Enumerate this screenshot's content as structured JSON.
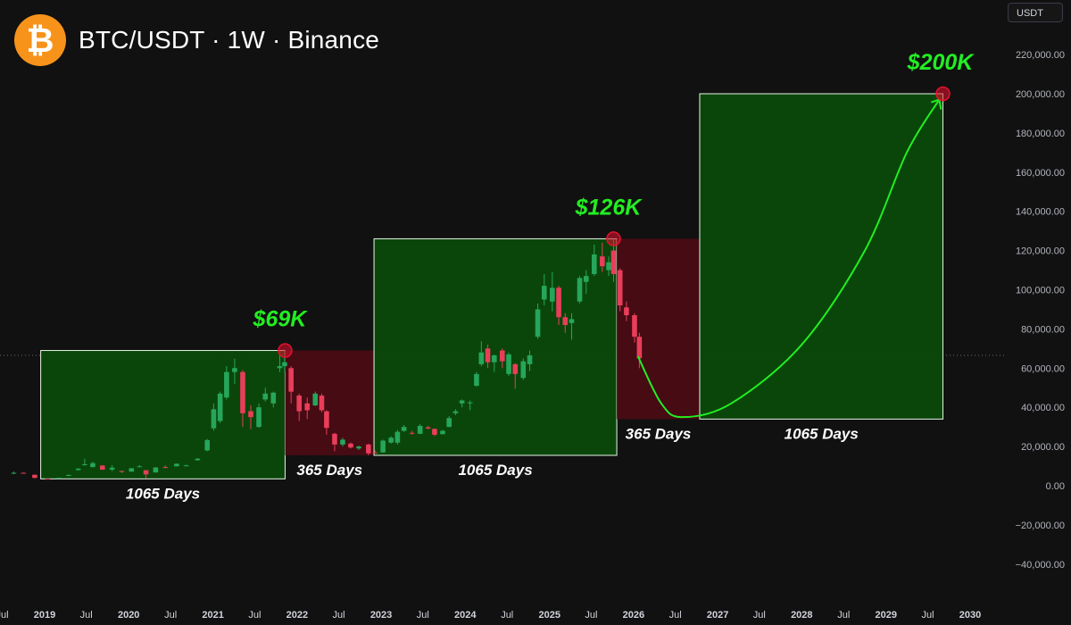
{
  "header": {
    "symbol": "BTC/USDT · 1W · Binance",
    "logo_glyph": "₿",
    "logo_icon": "bitcoin-icon",
    "logo_color": "#f7931a"
  },
  "currency_badge": "USDT",
  "colors": {
    "background": "#111111",
    "up": "#26a65b",
    "down": "#e83e5a",
    "bull_zone": "#0b4a0b",
    "bear_zone": "#4a0c14",
    "accent": "#22ee22",
    "peak_marker": "#e8112d"
  },
  "chart_data": {
    "type": "candlestick",
    "title": "BTC/USDT · 1W · Binance",
    "y_axis": {
      "unit": "USDT",
      "ticks": [
        -40000,
        -20000,
        0,
        20000,
        40000,
        60000,
        80000,
        100000,
        120000,
        140000,
        160000,
        180000,
        200000,
        220000
      ],
      "tick_labels": [
        "−40,000.00",
        "−20,000.00",
        "0.00",
        "20,000.00",
        "40,000.00",
        "60,000.00",
        "80,000.00",
        "100,000.00",
        "120,000.00",
        "140,000.00",
        "160,000.00",
        "180,000.00",
        "200,000.00",
        "220,000.00"
      ],
      "range": [
        -50000,
        240000
      ]
    },
    "x_axis": {
      "range": [
        "2018-06-01",
        "2030-09-01"
      ],
      "ticks": [
        {
          "date": "2018-07-01",
          "label": "Jul",
          "year": false
        },
        {
          "date": "2019-01-01",
          "label": "2019",
          "year": true
        },
        {
          "date": "2019-07-01",
          "label": "Jul",
          "year": false
        },
        {
          "date": "2020-01-01",
          "label": "2020",
          "year": true
        },
        {
          "date": "2020-07-01",
          "label": "Jul",
          "year": false
        },
        {
          "date": "2021-01-01",
          "label": "2021",
          "year": true
        },
        {
          "date": "2021-07-01",
          "label": "Jul",
          "year": false
        },
        {
          "date": "2022-01-01",
          "label": "2022",
          "year": true
        },
        {
          "date": "2022-07-01",
          "label": "Jul",
          "year": false
        },
        {
          "date": "2023-01-01",
          "label": "2023",
          "year": true
        },
        {
          "date": "2023-07-01",
          "label": "Jul",
          "year": false
        },
        {
          "date": "2024-01-01",
          "label": "2024",
          "year": true
        },
        {
          "date": "2024-07-01",
          "label": "Jul",
          "year": false
        },
        {
          "date": "2025-01-01",
          "label": "2025",
          "year": true
        },
        {
          "date": "2025-07-01",
          "label": "Jul",
          "year": false
        },
        {
          "date": "2026-01-01",
          "label": "2026",
          "year": true
        },
        {
          "date": "2026-07-01",
          "label": "Jul",
          "year": false
        },
        {
          "date": "2027-01-01",
          "label": "2027",
          "year": true
        },
        {
          "date": "2027-07-01",
          "label": "Jul",
          "year": false
        },
        {
          "date": "2028-01-01",
          "label": "2028",
          "year": true
        },
        {
          "date": "2028-07-01",
          "label": "Jul",
          "year": false
        },
        {
          "date": "2029-01-01",
          "label": "2029",
          "year": true
        },
        {
          "date": "2029-07-01",
          "label": "Jul",
          "year": false
        },
        {
          "date": "2030-01-01",
          "label": "2030",
          "year": true
        }
      ]
    },
    "reference_line": 66500,
    "zones": [
      {
        "kind": "bull",
        "start": "2018-12-15",
        "end": "2021-11-10",
        "low": 3500,
        "high": 69000,
        "label": "1065 Days"
      },
      {
        "kind": "bear",
        "start": "2021-11-10",
        "end": "2022-12-01",
        "low": 15500,
        "high": 69000,
        "label": "365 Days"
      },
      {
        "kind": "bull",
        "start": "2022-12-01",
        "end": "2025-10-20",
        "low": 15500,
        "high": 126000,
        "label": "1065 Days"
      },
      {
        "kind": "bear",
        "start": "2025-10-20",
        "end": "2026-10-15",
        "low": 34000,
        "high": 126000,
        "label": "365 Days"
      },
      {
        "kind": "bull",
        "start": "2026-10-15",
        "end": "2029-09-05",
        "low": 34000,
        "high": 200000,
        "label": "1065 Days"
      }
    ],
    "peaks": [
      {
        "date": "2021-11-10",
        "value": 69000,
        "label": "$69K"
      },
      {
        "date": "2025-10-06",
        "value": 126000,
        "label": "$126K"
      },
      {
        "date": "2029-09-05",
        "value": 200000,
        "label": "$200K"
      }
    ],
    "projection": [
      {
        "date": "2026-01-20",
        "value": 66000
      },
      {
        "date": "2026-05-01",
        "value": 42000
      },
      {
        "date": "2026-08-01",
        "value": 35000
      },
      {
        "date": "2027-03-01",
        "value": 42000
      },
      {
        "date": "2028-01-01",
        "value": 72000
      },
      {
        "date": "2028-10-01",
        "value": 120000
      },
      {
        "date": "2029-04-01",
        "value": 170000
      },
      {
        "date": "2029-08-20",
        "value": 197000
      }
    ],
    "candles": [
      {
        "date": "2018-06-10",
        "open": 7400,
        "high": 7800,
        "low": 6200,
        "close": 6500
      },
      {
        "date": "2018-08-20",
        "open": 6500,
        "high": 7200,
        "low": 5900,
        "close": 6600
      },
      {
        "date": "2018-10-01",
        "open": 6600,
        "high": 6700,
        "low": 6200,
        "close": 6300
      },
      {
        "date": "2018-11-19",
        "open": 5600,
        "high": 5700,
        "low": 3700,
        "close": 4000
      },
      {
        "date": "2019-01-14",
        "open": 3600,
        "high": 3800,
        "low": 3400,
        "close": 3550
      },
      {
        "date": "2019-03-04",
        "open": 3800,
        "high": 4100,
        "low": 3700,
        "close": 4050
      },
      {
        "date": "2019-04-15",
        "open": 5000,
        "high": 5600,
        "low": 4900,
        "close": 5500
      },
      {
        "date": "2019-05-27",
        "open": 8000,
        "high": 9000,
        "low": 7800,
        "close": 8700
      },
      {
        "date": "2019-06-24",
        "open": 10500,
        "high": 13800,
        "low": 10200,
        "close": 11000
      },
      {
        "date": "2019-07-29",
        "open": 9500,
        "high": 12300,
        "low": 9400,
        "close": 11500
      },
      {
        "date": "2019-09-09",
        "open": 10300,
        "high": 10500,
        "low": 8000,
        "close": 8200
      },
      {
        "date": "2019-10-21",
        "open": 8200,
        "high": 10400,
        "low": 7400,
        "close": 9200
      },
      {
        "date": "2019-12-02",
        "open": 7500,
        "high": 7700,
        "low": 6500,
        "close": 7200
      },
      {
        "date": "2020-01-13",
        "open": 7200,
        "high": 9000,
        "low": 7100,
        "close": 8900
      },
      {
        "date": "2020-02-17",
        "open": 9700,
        "high": 10500,
        "low": 9500,
        "close": 9900
      },
      {
        "date": "2020-03-16",
        "open": 7900,
        "high": 8000,
        "low": 3800,
        "close": 5800
      },
      {
        "date": "2020-04-27",
        "open": 6800,
        "high": 9500,
        "low": 6600,
        "close": 9300
      },
      {
        "date": "2020-06-08",
        "open": 9500,
        "high": 10400,
        "low": 9000,
        "close": 9400
      },
      {
        "date": "2020-07-27",
        "open": 9900,
        "high": 11400,
        "low": 9800,
        "close": 11200
      },
      {
        "date": "2020-09-07",
        "open": 10200,
        "high": 10700,
        "low": 9900,
        "close": 10400
      },
      {
        "date": "2020-10-26",
        "open": 13000,
        "high": 14000,
        "low": 12800,
        "close": 13800
      },
      {
        "date": "2020-12-07",
        "open": 18000,
        "high": 23800,
        "low": 17600,
        "close": 23300
      },
      {
        "date": "2021-01-04",
        "open": 29300,
        "high": 41900,
        "low": 28100,
        "close": 39000
      },
      {
        "date": "2021-02-01",
        "open": 33000,
        "high": 48000,
        "low": 32000,
        "close": 47000
      },
      {
        "date": "2021-03-01",
        "open": 45000,
        "high": 61000,
        "low": 44000,
        "close": 58000
      },
      {
        "date": "2021-04-05",
        "open": 58000,
        "high": 64800,
        "low": 52000,
        "close": 60000
      },
      {
        "date": "2021-05-10",
        "open": 58000,
        "high": 59000,
        "low": 30000,
        "close": 37000
      },
      {
        "date": "2021-06-14",
        "open": 38000,
        "high": 41000,
        "low": 28800,
        "close": 35000
      },
      {
        "date": "2021-07-19",
        "open": 30000,
        "high": 42000,
        "low": 29500,
        "close": 40000
      },
      {
        "date": "2021-08-16",
        "open": 44000,
        "high": 50000,
        "low": 43000,
        "close": 47000
      },
      {
        "date": "2021-09-20",
        "open": 42000,
        "high": 48000,
        "low": 40000,
        "close": 47500
      },
      {
        "date": "2021-10-18",
        "open": 60000,
        "high": 67000,
        "low": 58000,
        "close": 61000
      },
      {
        "date": "2021-11-08",
        "open": 61000,
        "high": 69000,
        "low": 58000,
        "close": 63000
      },
      {
        "date": "2021-12-06",
        "open": 60000,
        "high": 61000,
        "low": 42000,
        "close": 48000
      },
      {
        "date": "2022-01-10",
        "open": 46000,
        "high": 47000,
        "low": 33000,
        "close": 38000
      },
      {
        "date": "2022-02-14",
        "open": 42000,
        "high": 45000,
        "low": 34000,
        "close": 38500
      },
      {
        "date": "2022-03-21",
        "open": 41000,
        "high": 48000,
        "low": 40500,
        "close": 47000
      },
      {
        "date": "2022-04-18",
        "open": 46000,
        "high": 47000,
        "low": 37500,
        "close": 38500
      },
      {
        "date": "2022-05-09",
        "open": 38000,
        "high": 38500,
        "low": 26000,
        "close": 29500
      },
      {
        "date": "2022-06-13",
        "open": 26500,
        "high": 27000,
        "low": 17600,
        "close": 21000
      },
      {
        "date": "2022-07-18",
        "open": 21000,
        "high": 24500,
        "low": 20000,
        "close": 23500
      },
      {
        "date": "2022-08-22",
        "open": 21500,
        "high": 22000,
        "low": 19000,
        "close": 19500
      },
      {
        "date": "2022-09-26",
        "open": 19000,
        "high": 20500,
        "low": 18200,
        "close": 20000
      },
      {
        "date": "2022-11-07",
        "open": 21000,
        "high": 21500,
        "low": 15500,
        "close": 16500
      },
      {
        "date": "2022-12-05",
        "open": 17000,
        "high": 18000,
        "low": 16500,
        "close": 16600
      },
      {
        "date": "2023-01-09",
        "open": 17000,
        "high": 23500,
        "low": 16900,
        "close": 23000
      },
      {
        "date": "2023-02-13",
        "open": 22000,
        "high": 25200,
        "low": 21500,
        "close": 24500
      },
      {
        "date": "2023-03-13",
        "open": 22000,
        "high": 28500,
        "low": 21000,
        "close": 27500
      },
      {
        "date": "2023-04-10",
        "open": 28000,
        "high": 31000,
        "low": 27500,
        "close": 30000
      },
      {
        "date": "2023-05-15",
        "open": 27000,
        "high": 28000,
        "low": 26000,
        "close": 26800
      },
      {
        "date": "2023-06-19",
        "open": 26500,
        "high": 31400,
        "low": 26300,
        "close": 30500
      },
      {
        "date": "2023-07-24",
        "open": 29800,
        "high": 30500,
        "low": 28800,
        "close": 29200
      },
      {
        "date": "2023-08-21",
        "open": 29000,
        "high": 29200,
        "low": 25300,
        "close": 26000
      },
      {
        "date": "2023-09-25",
        "open": 26300,
        "high": 28500,
        "low": 26200,
        "close": 28000
      },
      {
        "date": "2023-10-23",
        "open": 30000,
        "high": 35500,
        "low": 29800,
        "close": 34500
      },
      {
        "date": "2023-11-20",
        "open": 37000,
        "high": 39000,
        "low": 36000,
        "close": 38000
      },
      {
        "date": "2023-12-18",
        "open": 42000,
        "high": 44000,
        "low": 40000,
        "close": 43500
      },
      {
        "date": "2024-01-22",
        "open": 42000,
        "high": 43500,
        "low": 38500,
        "close": 42500
      },
      {
        "date": "2024-02-19",
        "open": 51000,
        "high": 58000,
        "low": 50500,
        "close": 57000
      },
      {
        "date": "2024-03-11",
        "open": 62000,
        "high": 73700,
        "low": 61000,
        "close": 68000
      },
      {
        "date": "2024-04-08",
        "open": 70000,
        "high": 72000,
        "low": 60000,
        "close": 63000
      },
      {
        "date": "2024-05-06",
        "open": 63000,
        "high": 67000,
        "low": 58000,
        "close": 66500
      },
      {
        "date": "2024-06-10",
        "open": 69000,
        "high": 70000,
        "low": 60000,
        "close": 63500
      },
      {
        "date": "2024-07-08",
        "open": 57000,
        "high": 68000,
        "low": 56000,
        "close": 67000
      },
      {
        "date": "2024-08-05",
        "open": 62000,
        "high": 62500,
        "low": 49500,
        "close": 57000
      },
      {
        "date": "2024-09-09",
        "open": 55000,
        "high": 65000,
        "low": 54000,
        "close": 63500
      },
      {
        "date": "2024-10-07",
        "open": 62000,
        "high": 69000,
        "low": 58500,
        "close": 66500
      },
      {
        "date": "2024-11-11",
        "open": 76000,
        "high": 93000,
        "low": 75000,
        "close": 90000
      },
      {
        "date": "2024-12-09",
        "open": 95000,
        "high": 108000,
        "low": 92000,
        "close": 102000
      },
      {
        "date": "2025-01-13",
        "open": 94000,
        "high": 109000,
        "low": 89000,
        "close": 101000
      },
      {
        "date": "2025-02-10",
        "open": 101000,
        "high": 102000,
        "low": 82000,
        "close": 86000
      },
      {
        "date": "2025-03-10",
        "open": 86000,
        "high": 88000,
        "low": 78000,
        "close": 82000
      },
      {
        "date": "2025-04-07",
        "open": 83000,
        "high": 88000,
        "low": 74500,
        "close": 85000
      },
      {
        "date": "2025-05-12",
        "open": 94000,
        "high": 107000,
        "low": 93000,
        "close": 106000
      },
      {
        "date": "2025-06-09",
        "open": 104000,
        "high": 110000,
        "low": 98000,
        "close": 107000
      },
      {
        "date": "2025-07-14",
        "open": 108000,
        "high": 123000,
        "low": 107000,
        "close": 118000
      },
      {
        "date": "2025-08-18",
        "open": 117000,
        "high": 124000,
        "low": 109000,
        "close": 112000
      },
      {
        "date": "2025-09-15",
        "open": 110000,
        "high": 117000,
        "low": 107000,
        "close": 114000
      },
      {
        "date": "2025-10-06",
        "open": 120000,
        "high": 126000,
        "low": 104000,
        "close": 108000
      },
      {
        "date": "2025-11-03",
        "open": 110000,
        "high": 111000,
        "low": 89000,
        "close": 92000
      },
      {
        "date": "2025-12-01",
        "open": 91000,
        "high": 94000,
        "low": 84000,
        "close": 87000
      },
      {
        "date": "2026-01-05",
        "open": 87000,
        "high": 88000,
        "low": 73000,
        "close": 76000
      },
      {
        "date": "2026-01-26",
        "open": 76000,
        "high": 78000,
        "low": 60000,
        "close": 65000
      }
    ]
  }
}
